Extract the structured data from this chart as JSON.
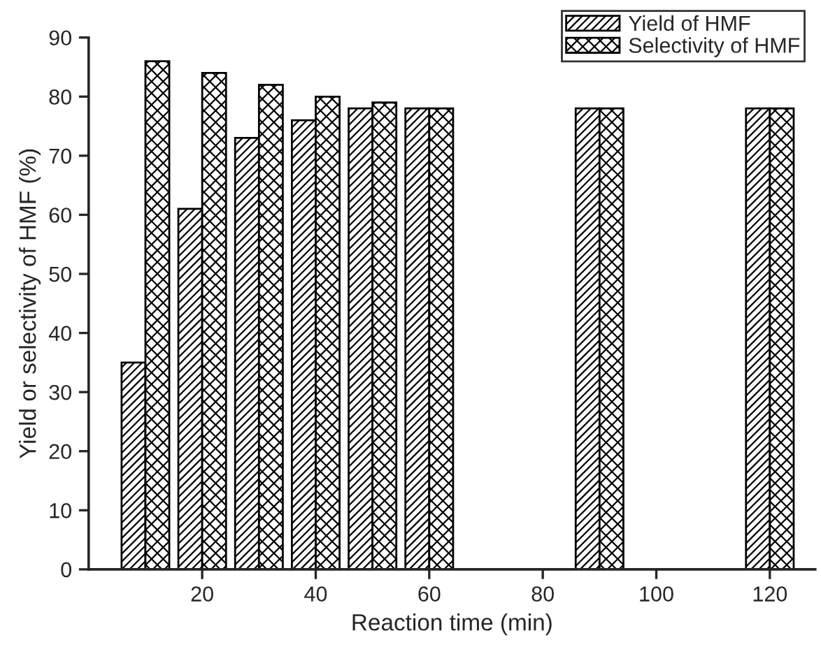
{
  "chart_data": {
    "type": "bar",
    "xlabel": "Reaction time (min)",
    "ylabel": "Yield or selectivity of HMF (%)",
    "x": [
      10,
      20,
      30,
      40,
      50,
      60,
      90,
      120
    ],
    "series": [
      {
        "name": "Yield of HMF",
        "color": "#000000",
        "values": [
          35,
          61,
          73,
          76,
          78,
          78,
          78,
          78
        ]
      },
      {
        "name": "Selectivity of HMF",
        "color": "#000000",
        "values": [
          86,
          84,
          82,
          80,
          79,
          78,
          78,
          78
        ]
      }
    ],
    "xlim": [
      0,
      128
    ],
    "xticks": [
      20,
      40,
      60,
      80,
      100,
      120
    ],
    "ylim": [
      0,
      90
    ],
    "yticks": [
      0,
      10,
      20,
      30,
      40,
      50,
      60,
      70,
      80,
      90
    ],
    "grid": false,
    "legend": "top right"
  }
}
